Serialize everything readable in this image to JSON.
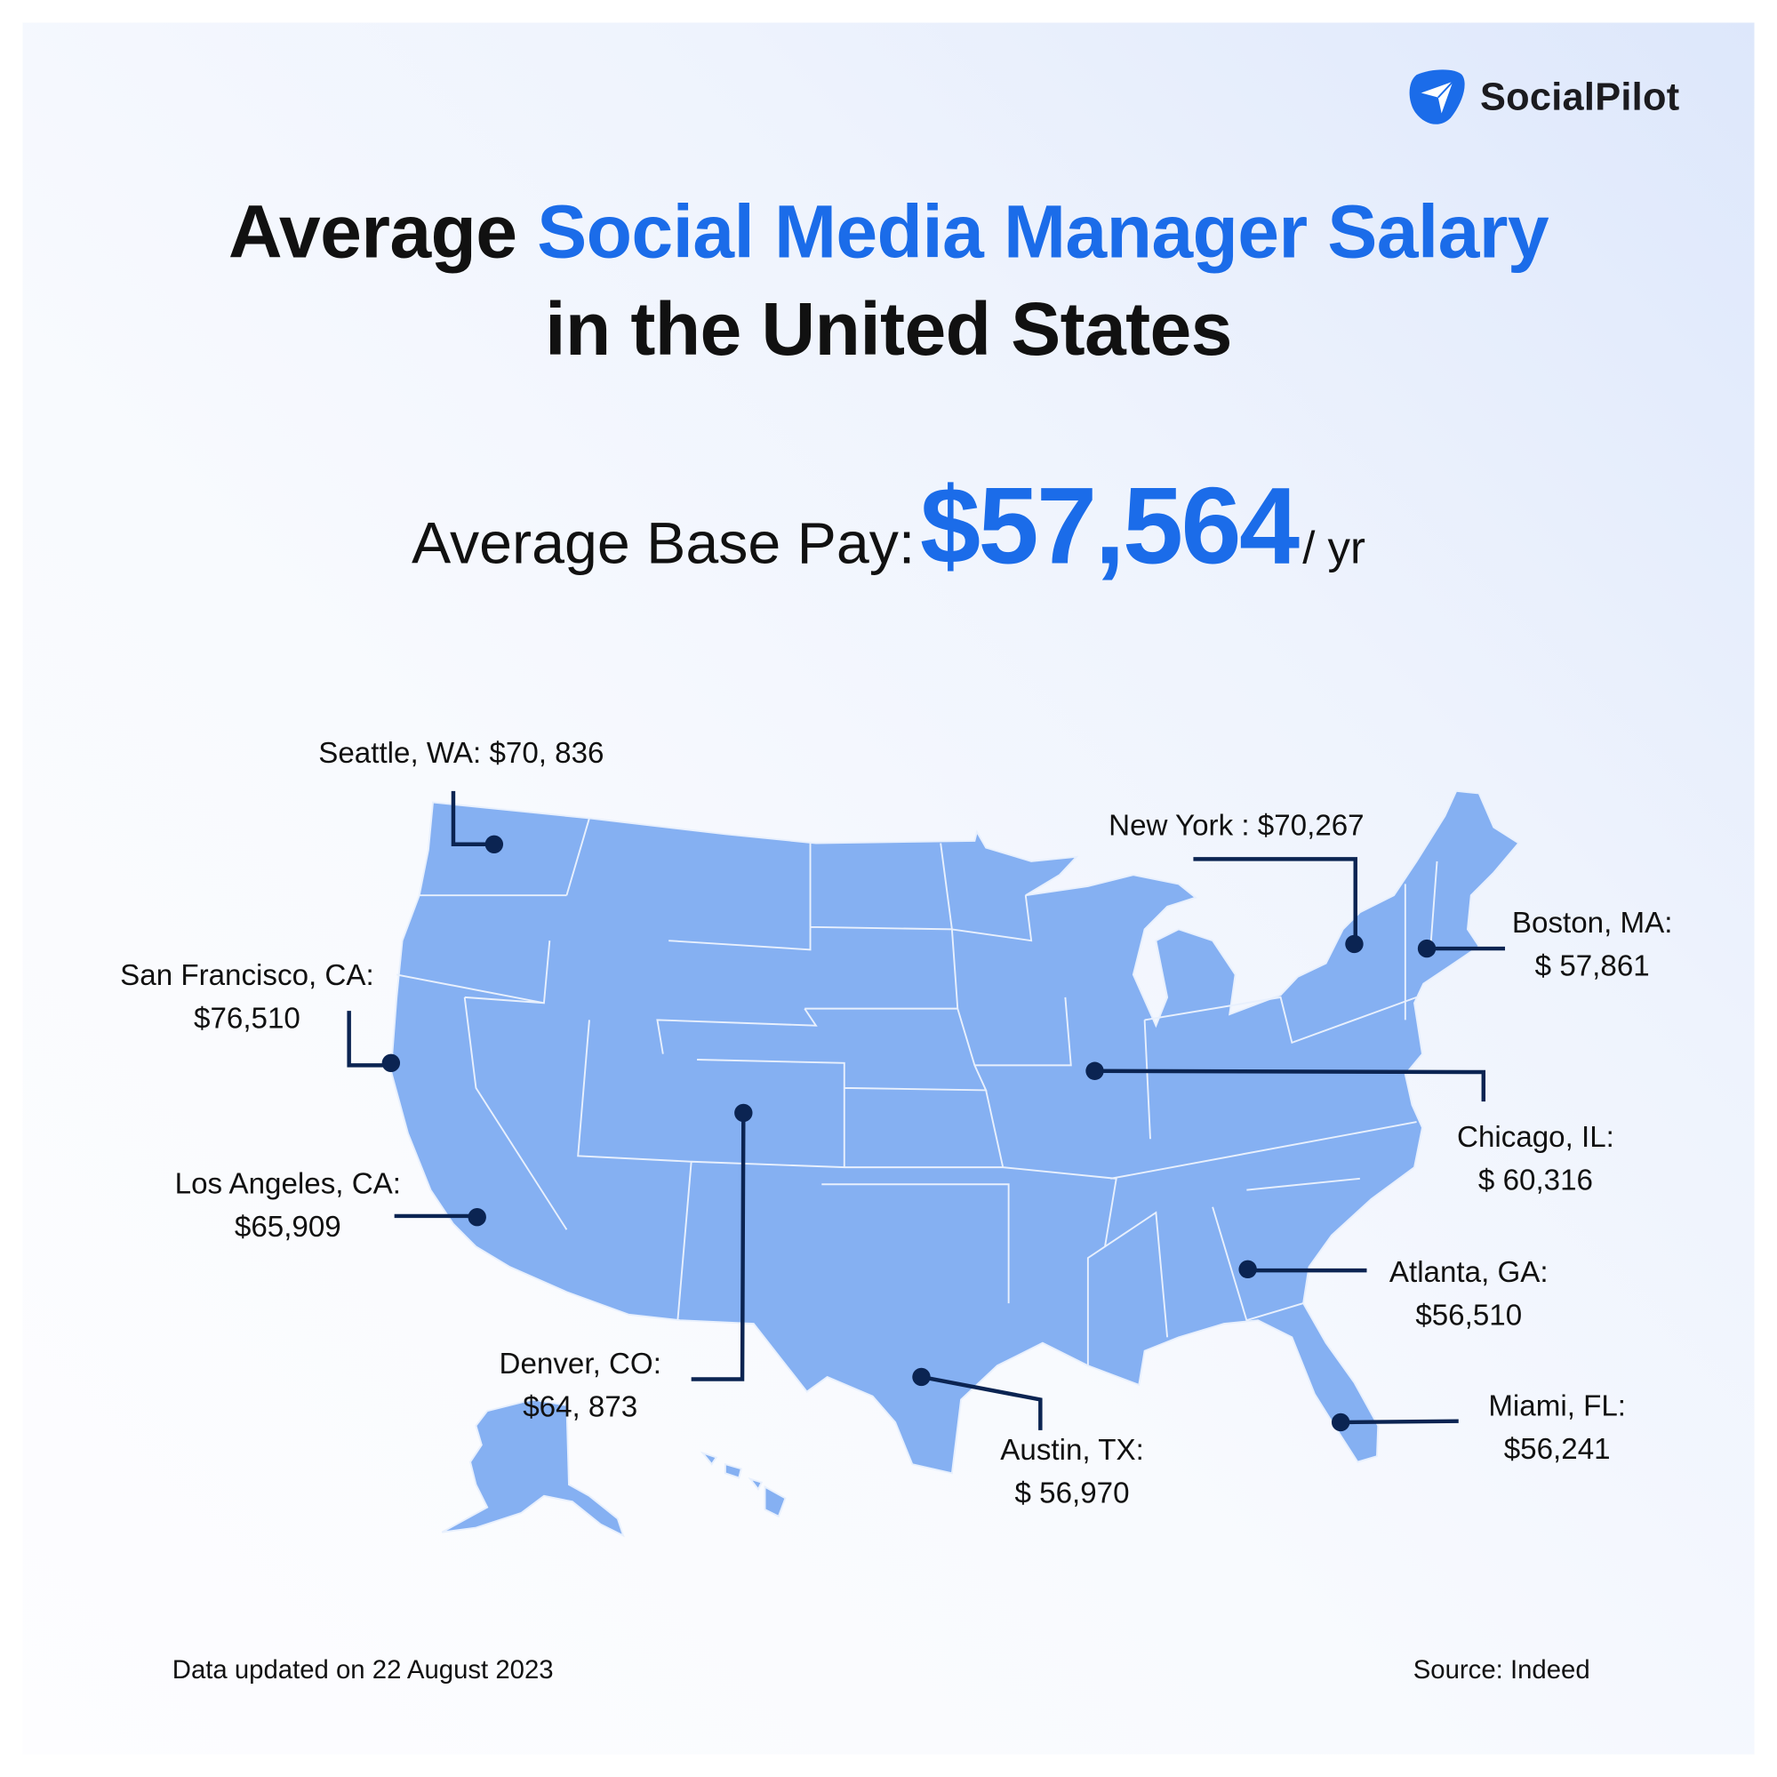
{
  "brand": {
    "name": "SocialPilot",
    "color": "#1b6ce9",
    "icon": "paper-plane-icon"
  },
  "title": {
    "line1_black": "Average ",
    "line1_blue": "Social Media Manager Salary",
    "line2": "in the United States"
  },
  "base_pay": {
    "label": "Average Base Pay:",
    "value": "$57,564",
    "unit": "/ yr"
  },
  "map_colors": {
    "land": "#85b0f2",
    "border": "#e8f0fd",
    "callout": "#0b2452"
  },
  "callouts": [
    {
      "city": "Seattle, WA: $70, 836",
      "salary": ""
    },
    {
      "city": "San Francisco, CA:",
      "salary": "$76,510"
    },
    {
      "city": "Los Angeles, CA:",
      "salary": "$65,909"
    },
    {
      "city": "Denver, CO:",
      "salary": "$64, 873"
    },
    {
      "city": "Austin, TX:",
      "salary": "$ 56,970"
    },
    {
      "city": "New York : $70,267",
      "salary": ""
    },
    {
      "city": "Boston, MA:",
      "salary": "$ 57,861"
    },
    {
      "city": "Chicago, IL:",
      "salary": "$ 60,316"
    },
    {
      "city": "Atlanta, GA:",
      "salary": "$56,510"
    },
    {
      "city": "Miami, FL:",
      "salary": "$56,241"
    }
  ],
  "footer": {
    "updated": "Data updated on 22 August 2023",
    "source": "Source: Indeed"
  }
}
